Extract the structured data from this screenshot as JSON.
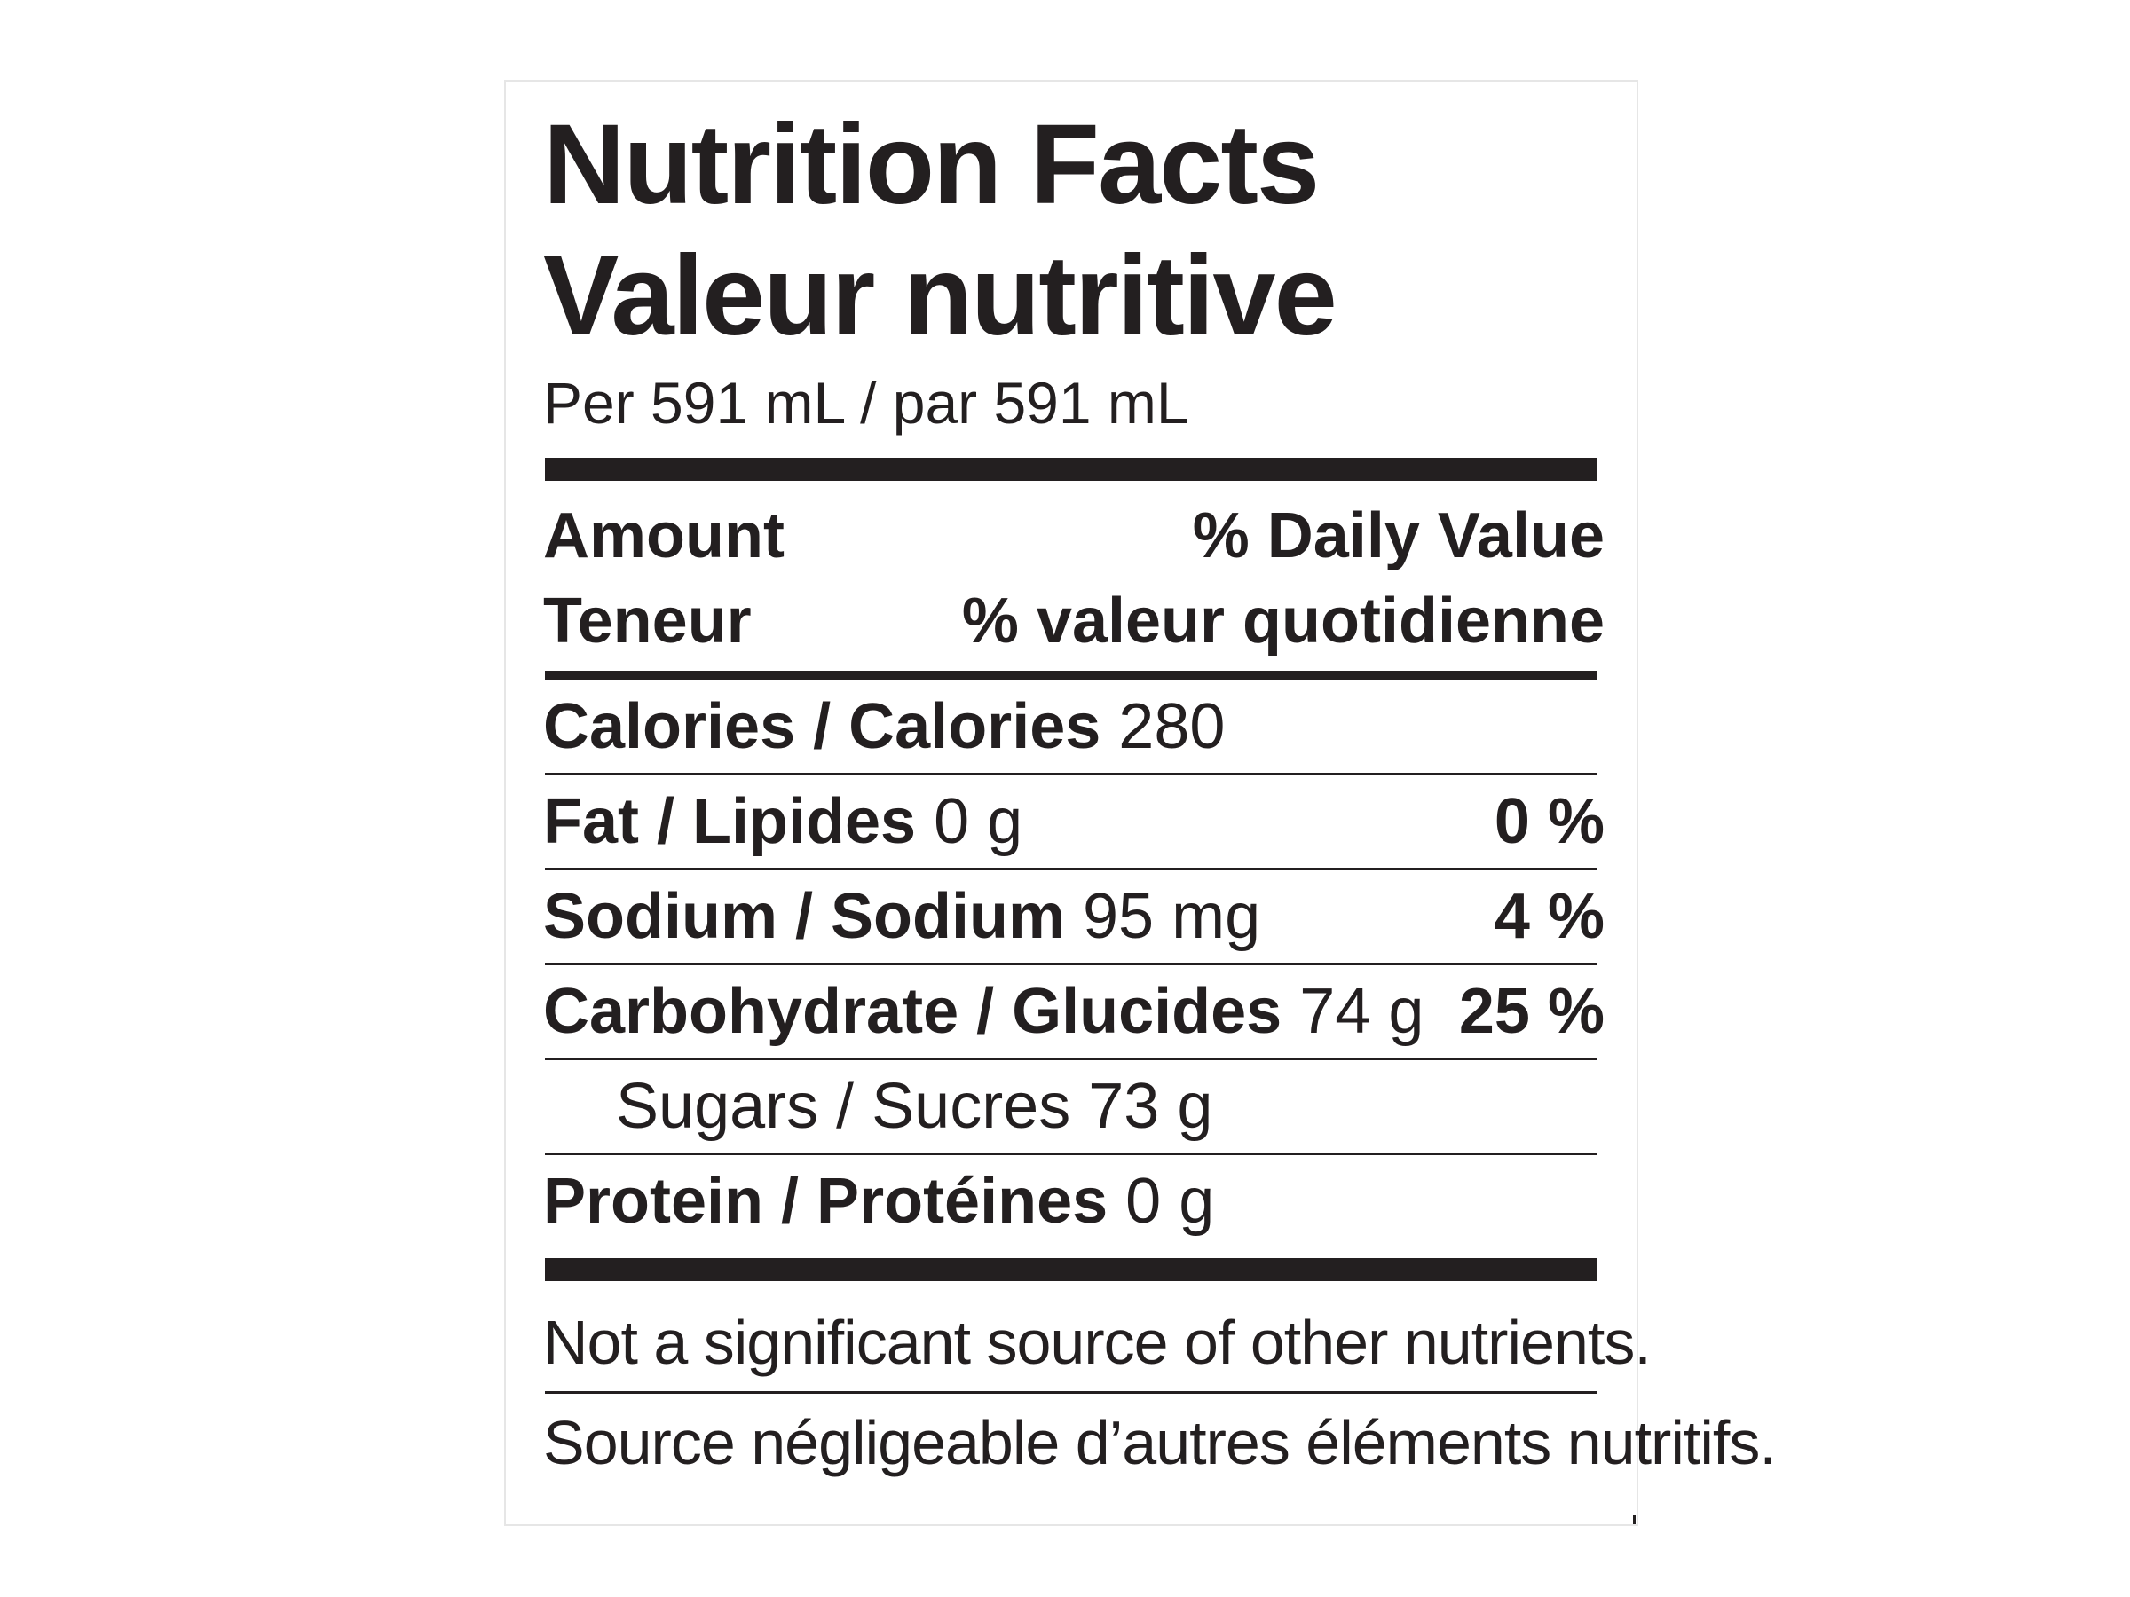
{
  "label": {
    "title_en": "Nutrition Facts",
    "title_fr": "Valeur nutritive",
    "serving": "Per 591 mL / par 591 mL",
    "header": {
      "amount_en": "Amount",
      "amount_fr": "Teneur",
      "dv_en": "% Daily Value",
      "dv_fr": "% valeur quotidienne"
    },
    "calories": {
      "name": "Calories / Calories",
      "amount": "280"
    },
    "nutrients": [
      {
        "name": "Fat / Lipides",
        "amount": "0 g",
        "dv": "0 %"
      },
      {
        "name": "Sodium / Sodium",
        "amount": "95 mg",
        "dv": "4 %"
      },
      {
        "name": "Carbohydrate / Glucides",
        "amount": "74 g",
        "dv": "25 %"
      },
      {
        "name": "Sugars / Sucres",
        "amount": "73 g",
        "dv": ""
      },
      {
        "name": "Protein / Protéines",
        "amount": "0 g",
        "dv": ""
      }
    ],
    "footnote_en": "Not a significant source of other nutrients.",
    "footnote_fr": "Source négligeable d’autres éléments nutritifs."
  }
}
